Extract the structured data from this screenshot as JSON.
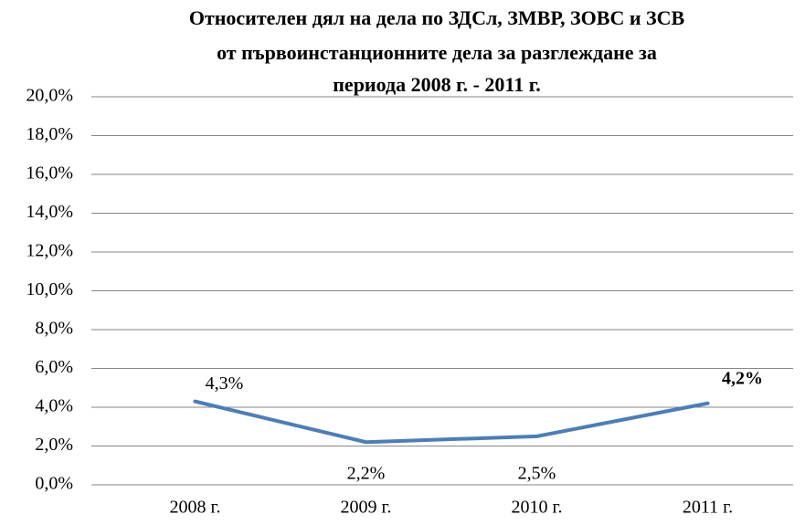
{
  "chart_data": {
    "type": "line",
    "title": [
      "Относителен дял на дела по ЗДСл, ЗМВР, ЗОВС и ЗСВ",
      "от първоинстанционните дела за разглеждане за",
      "периода 2008 г. - 2011 г."
    ],
    "categories": [
      "2008 г.",
      "2009 г.",
      "2010 г.",
      "2011 г."
    ],
    "series": [
      {
        "name": null,
        "color": "#4a7ebb",
        "values": [
          4.3,
          2.2,
          2.5,
          4.2
        ],
        "value_labels": [
          "4,3%",
          "2,2%",
          "2,5%",
          "4,2%"
        ]
      }
    ],
    "ylim": [
      0,
      20
    ],
    "yticks": [
      {
        "value": 0,
        "label": "0,0%"
      },
      {
        "value": 2,
        "label": "2,0%"
      },
      {
        "value": 4,
        "label": "4,0%"
      },
      {
        "value": 6,
        "label": "6,0%"
      },
      {
        "value": 8,
        "label": "8,0%"
      },
      {
        "value": 10,
        "label": "10,0%"
      },
      {
        "value": 12,
        "label": "12,0%"
      },
      {
        "value": 14,
        "label": "14,0%"
      },
      {
        "value": 16,
        "label": "16,0%"
      },
      {
        "value": 18,
        "label": "18,0%"
      },
      {
        "value": 20,
        "label": "20,0%"
      }
    ],
    "grid": true
  }
}
